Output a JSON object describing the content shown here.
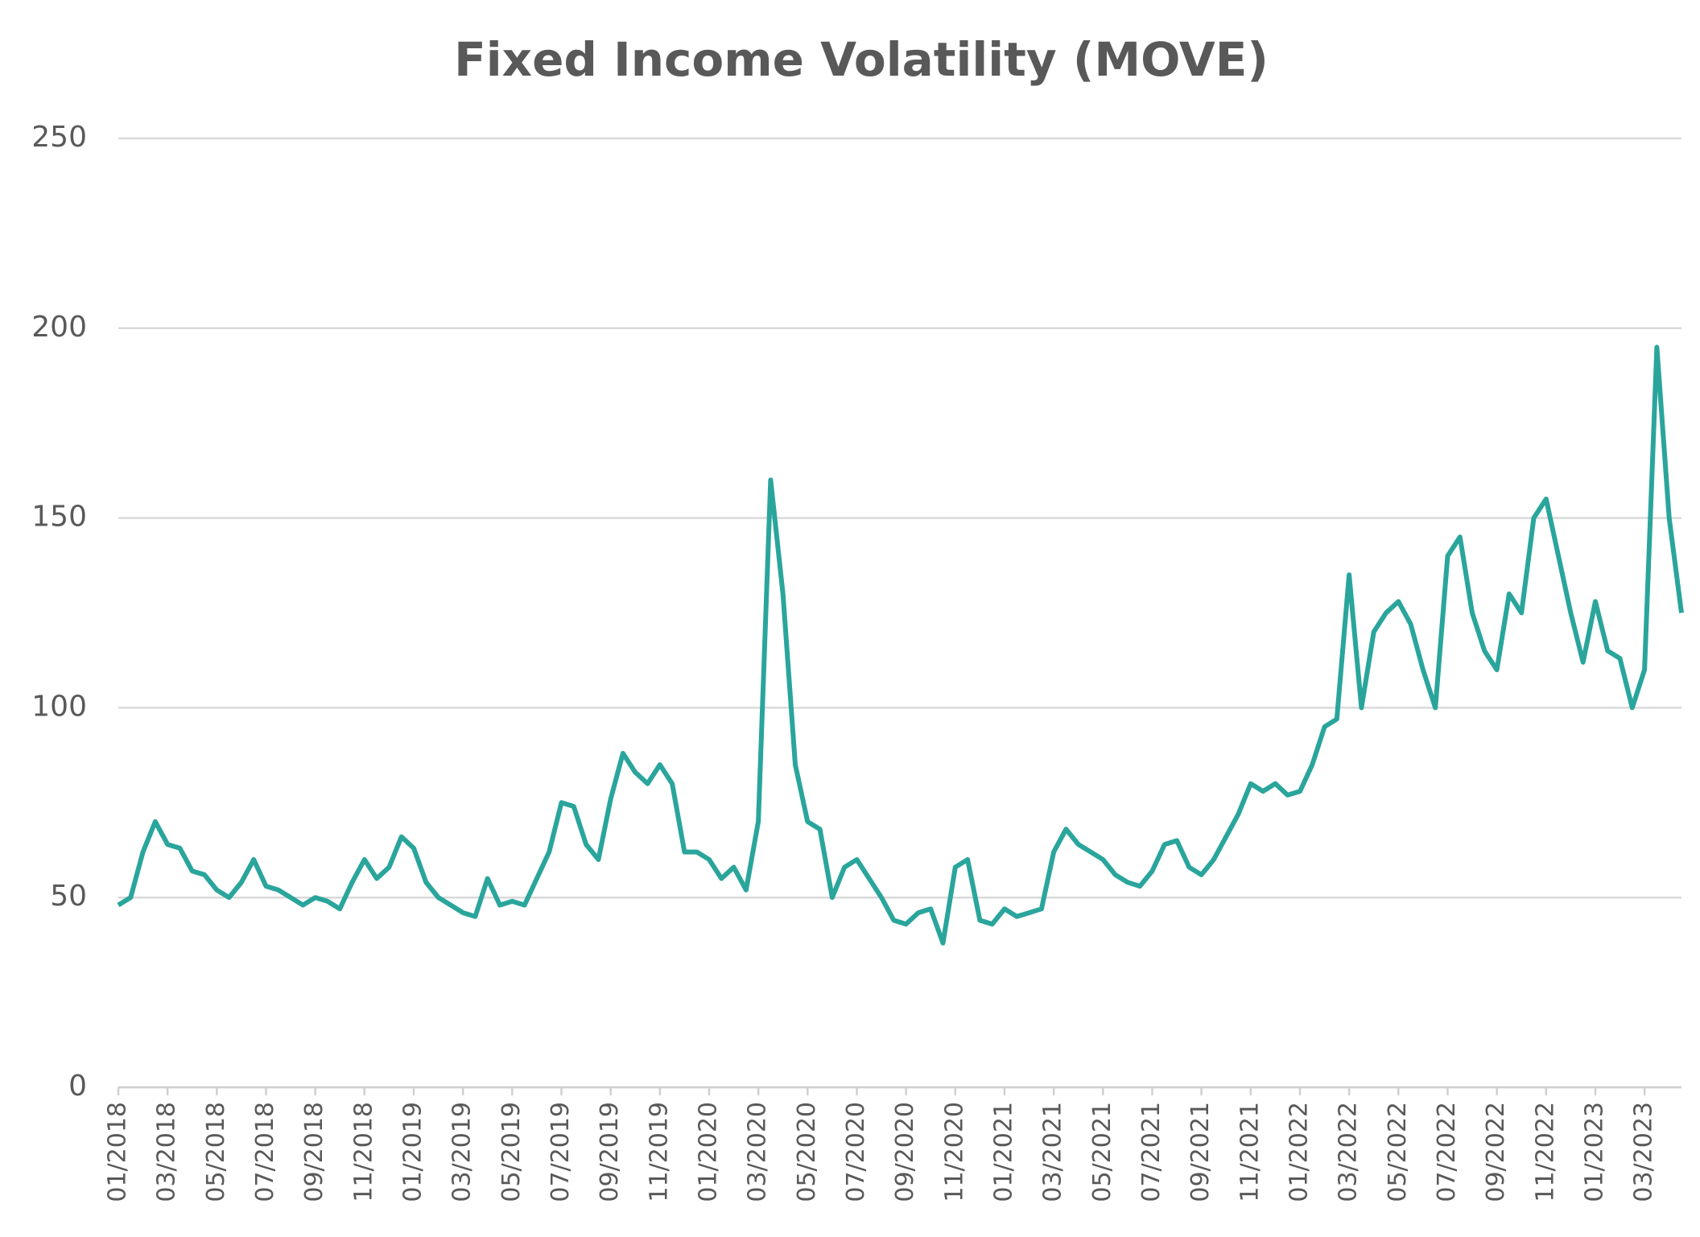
{
  "chart_data": {
    "type": "line",
    "title": "Fixed Income Volatility (MOVE)",
    "categories": [
      "01/2018",
      null,
      null,
      null,
      "03/2018",
      null,
      null,
      null,
      "05/2018",
      null,
      null,
      null,
      "07/2018",
      null,
      null,
      null,
      "09/2018",
      null,
      null,
      null,
      "11/2018",
      null,
      null,
      null,
      "01/2019",
      null,
      null,
      null,
      "03/2019",
      null,
      null,
      null,
      "05/2019",
      null,
      null,
      null,
      "07/2019",
      null,
      null,
      null,
      "09/2019",
      null,
      null,
      null,
      "11/2019",
      null,
      null,
      null,
      "01/2020",
      null,
      null,
      null,
      "03/2020",
      null,
      null,
      null,
      "05/2020",
      null,
      null,
      null,
      "07/2020",
      null,
      null,
      null,
      "09/2020",
      null,
      null,
      null,
      "11/2020",
      null,
      null,
      null,
      "01/2021",
      null,
      null,
      null,
      "03/2021",
      null,
      null,
      null,
      "05/2021",
      null,
      null,
      null,
      "07/2021",
      null,
      null,
      null,
      "09/2021",
      null,
      null,
      null,
      "11/2021",
      null,
      null,
      null,
      "01/2022",
      null,
      null,
      null,
      "03/2022",
      null,
      null,
      null,
      "05/2022",
      null,
      null,
      null,
      "07/2022",
      null,
      null,
      null,
      "09/2022",
      null,
      null,
      null,
      "11/2022",
      null,
      null,
      null,
      "01/2023",
      null,
      null,
      null,
      "03/2023",
      null,
      null,
      null
    ],
    "series": [
      {
        "name": "MOVE",
        "color": "#2aa59c",
        "values": [
          48,
          50,
          62,
          70,
          64,
          63,
          57,
          56,
          52,
          50,
          54,
          60,
          53,
          52,
          50,
          48,
          50,
          49,
          47,
          54,
          60,
          55,
          58,
          66,
          63,
          54,
          50,
          48,
          46,
          45,
          55,
          48,
          49,
          48,
          55,
          62,
          75,
          74,
          64,
          60,
          76,
          88,
          83,
          80,
          85,
          80,
          62,
          62,
          60,
          55,
          58,
          52,
          70,
          160,
          130,
          85,
          70,
          68,
          50,
          58,
          60,
          55,
          50,
          44,
          43,
          46,
          47,
          38,
          58,
          60,
          44,
          43,
          47,
          45,
          46,
          47,
          62,
          68,
          64,
          62,
          60,
          56,
          54,
          53,
          57,
          64,
          65,
          58,
          56,
          60,
          66,
          72,
          80,
          78,
          80,
          77,
          78,
          85,
          95,
          97,
          135,
          100,
          120,
          125,
          128,
          122,
          110,
          100,
          140,
          145,
          125,
          115,
          110,
          130,
          125,
          150,
          155,
          140,
          125,
          112,
          128,
          115,
          113,
          100,
          110,
          195,
          150,
          125
        ]
      }
    ],
    "ylim": [
      0,
      250
    ],
    "yticks": [
      0,
      50,
      100,
      150,
      200,
      250
    ],
    "grid": true
  }
}
